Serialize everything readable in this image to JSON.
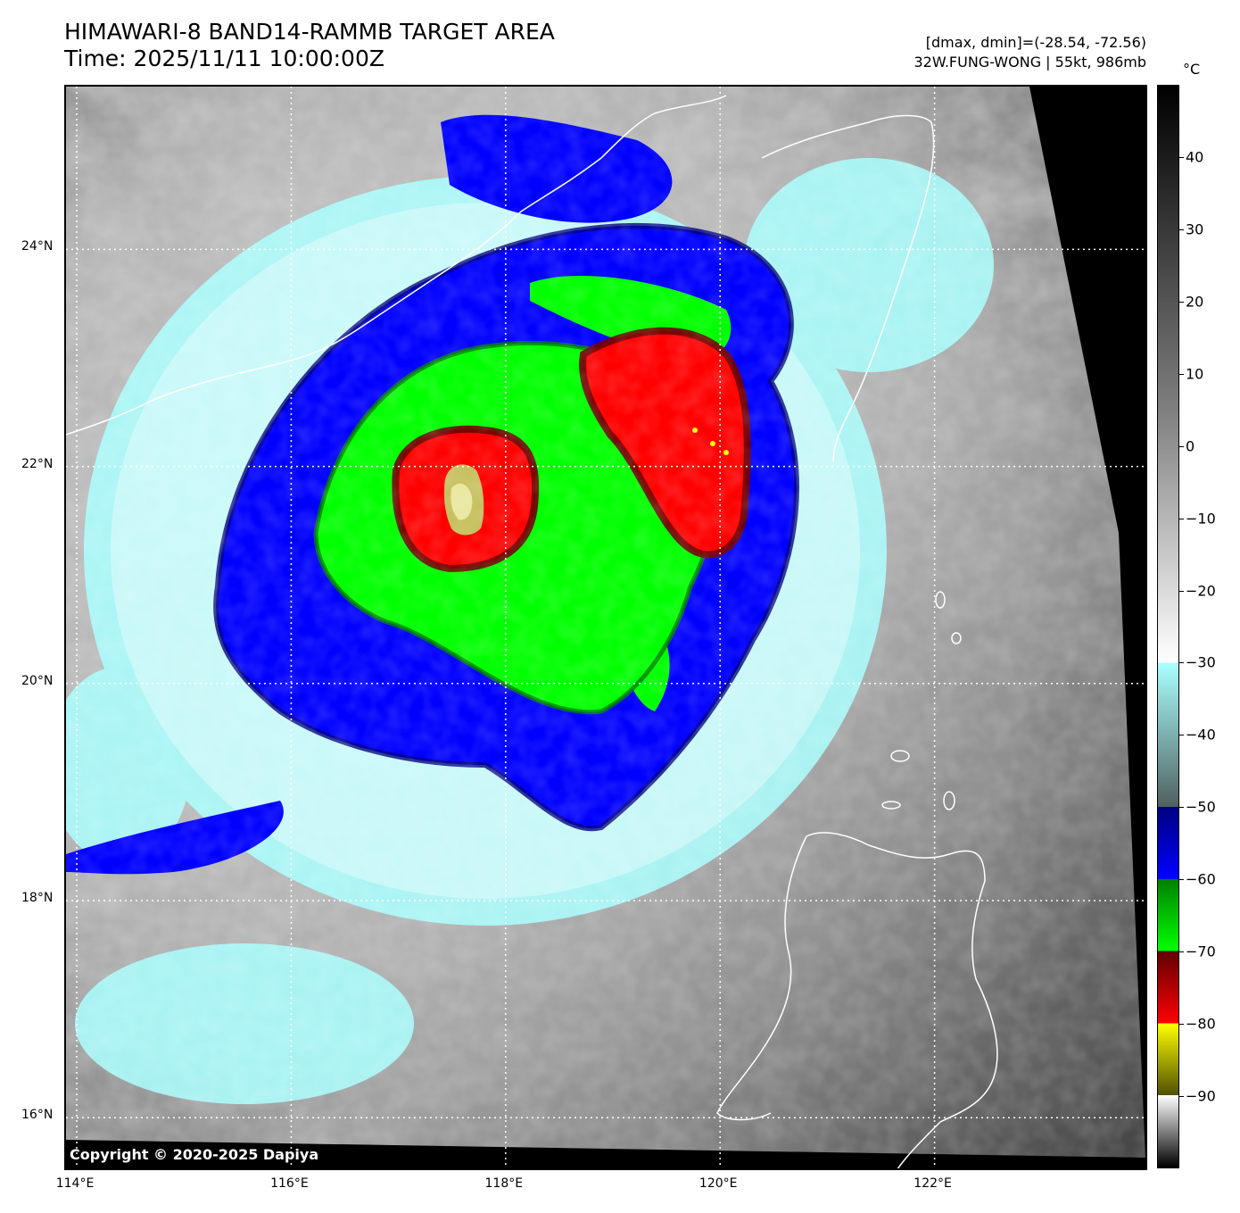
{
  "header": {
    "title_line1": "HIMAWARI-8 BAND14-RAMMB TARGET AREA",
    "title_line2": "Time: 2025/11/11 10:00:00Z",
    "dmax_dmin": "[dmax, dmin]=(-28.54, -72.56)",
    "storm_info": "32W.FUNG-WONG | 55kt, 986mb"
  },
  "map": {
    "copyright": "Copyright © 2020-2025 Dapiya",
    "lat_labels": [
      "24°N",
      "22°N",
      "20°N",
      "18°N",
      "16°N"
    ],
    "lon_labels": [
      "114°E",
      "116°E",
      "118°E",
      "120°E",
      "122°E"
    ],
    "lat_values": [
      24,
      22,
      20,
      18,
      16
    ],
    "lon_values": [
      114,
      116,
      118,
      120,
      122
    ],
    "lon_range": [
      113.9,
      124.0
    ],
    "lat_range": [
      15.5,
      25.5
    ]
  },
  "colorbar": {
    "unit": "°C",
    "ticks": [
      "40",
      "30",
      "20",
      "10",
      "0",
      "−10",
      "−20",
      "−30",
      "−40",
      "−50",
      "−60",
      "−70",
      "−80",
      "−90"
    ],
    "tick_values": [
      40,
      30,
      20,
      10,
      0,
      -10,
      -20,
      -30,
      -40,
      -50,
      -60,
      -70,
      -80,
      -90
    ],
    "range": [
      -100,
      50
    ],
    "colors": {
      "warm_top": "#000000",
      "gray_mid": "#7f7f7f",
      "white": "#ffffff",
      "cyan": "#aaffff",
      "teal_gray": "#506060",
      "blue_dark": "#000080",
      "blue": "#0000ff",
      "green_dark": "#008000",
      "green": "#00ff00",
      "red_dark": "#600000",
      "red": "#ff0000",
      "yellow": "#ffff00",
      "olive": "#505000"
    }
  }
}
